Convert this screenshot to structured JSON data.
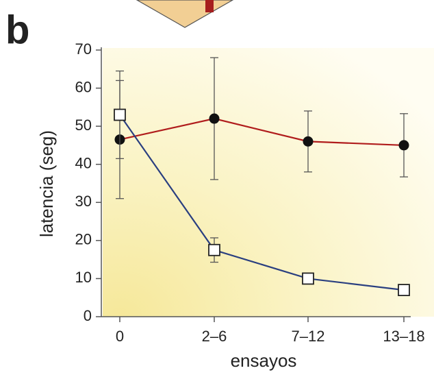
{
  "chart_data": {
    "type": "line",
    "panel_label": "b",
    "x_label": "ensayos",
    "y_label": "latencia (seg)",
    "categories": [
      "0",
      "2–6",
      "7–12",
      "13–18"
    ],
    "series": [
      {
        "color": "#b01c1c",
        "marker": "filled-circle",
        "values": [
          46.5,
          52,
          46,
          45
        ],
        "errors": [
          15.5,
          16,
          8,
          8.3
        ]
      },
      {
        "color": "#2a3f80",
        "marker": "open-square",
        "values": [
          53,
          17.5,
          10,
          7
        ],
        "errors": [
          11.5,
          3.2,
          null,
          null
        ]
      }
    ],
    "ylim": [
      0,
      70
    ],
    "yticks": [
      0,
      10,
      20,
      30,
      40,
      50,
      60,
      70
    ]
  }
}
